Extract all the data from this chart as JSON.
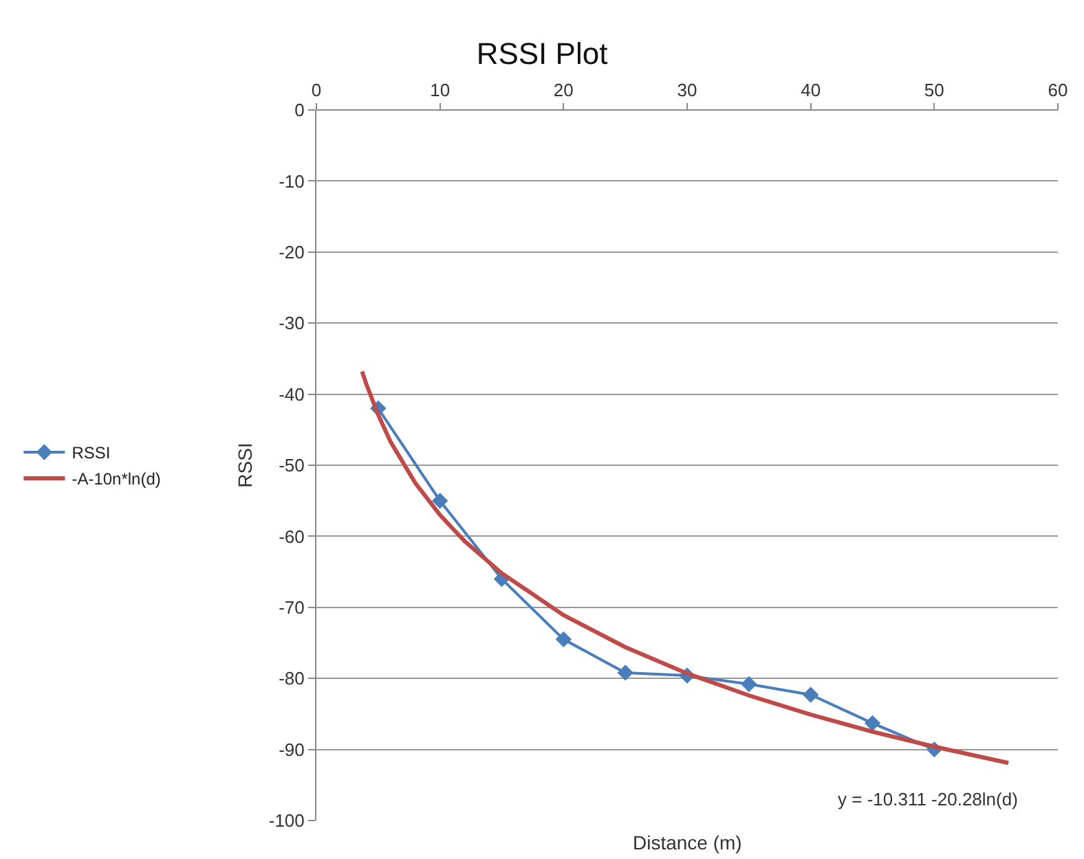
{
  "chart_data": {
    "type": "line",
    "title": "RSSI Plot",
    "xlabel": "Distance (m)",
    "ylabel": "RSSI",
    "xlim": [
      0,
      60
    ],
    "xticks": [
      0,
      10,
      20,
      30,
      40,
      50,
      60
    ],
    "ylim": [
      -100,
      0
    ],
    "yticks": [
      -100,
      -90,
      -80,
      -70,
      -60,
      -50,
      -40,
      -30,
      -20,
      -10,
      0
    ],
    "grid": "y",
    "legend": "left",
    "marker": "diamond",
    "line_style": "solid",
    "series": [
      {
        "name": "RSSI",
        "color": "#4a7ebb",
        "x": [
          5,
          10,
          15,
          20,
          25,
          30,
          35,
          40,
          45,
          50
        ],
        "values": [
          -42,
          -55,
          -66,
          -74.5,
          -79.2,
          -79.6,
          -80.8,
          -82.3,
          -86.3,
          -90
        ]
      },
      {
        "name": "-A-10n*ln(d)",
        "type": "line",
        "marker": "none",
        "color": "#be4b48",
        "x": [
          3.7,
          4,
          5,
          6,
          8,
          10,
          12,
          15,
          20,
          25,
          30,
          35,
          40,
          45,
          50,
          56
        ],
        "values": [
          -36.8,
          -38.4,
          -42.9,
          -46.7,
          -52.5,
          -57.0,
          -60.7,
          -65.2,
          -71.1,
          -75.6,
          -79.3,
          -82.4,
          -85.1,
          -87.5,
          -89.6,
          -91.9
        ]
      }
    ],
    "annotations": [
      "y = -10.311 -20.28ln(d)"
    ]
  }
}
